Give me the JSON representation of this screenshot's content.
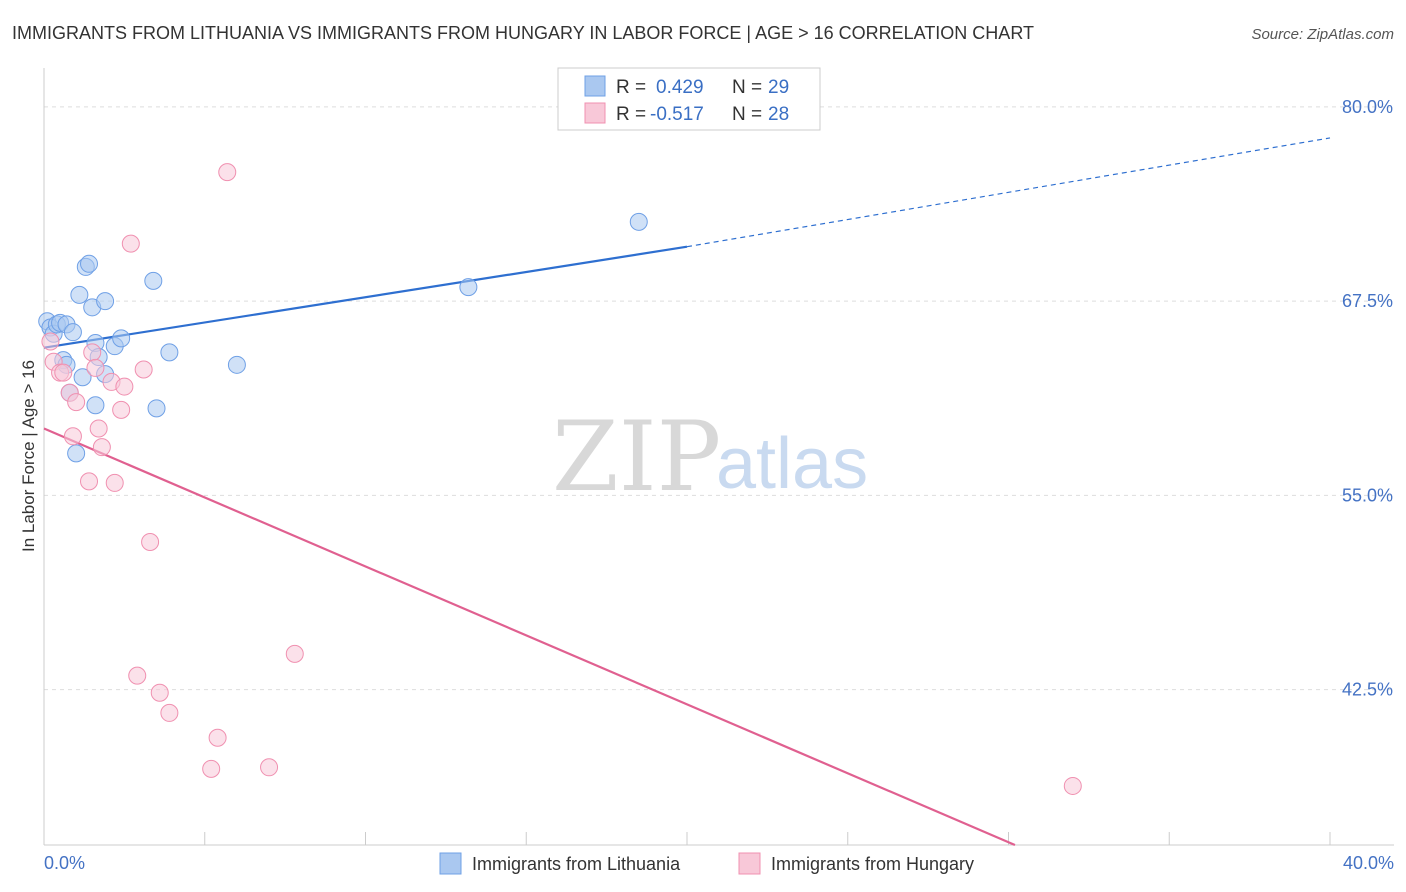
{
  "chart_data": {
    "type": "scatter",
    "title": "IMMIGRANTS FROM LITHUANIA VS IMMIGRANTS FROM HUNGARY IN LABOR FORCE | AGE > 16 CORRELATION CHART",
    "source": "Source: ZipAtlas.com",
    "xlabel": "",
    "ylabel": "In Labor Force | Age > 16",
    "xlim": [
      0,
      40
    ],
    "ylim": [
      32.5,
      82.5
    ],
    "x_tick_labels": [
      "0.0%",
      "40.0%"
    ],
    "y_ticks": [
      42.5,
      55.0,
      67.5,
      80.0
    ],
    "y_tick_labels": [
      "42.5%",
      "55.0%",
      "67.5%",
      "80.0%"
    ],
    "grid": true,
    "legend": {
      "r_label": "R =",
      "n_label": "N =",
      "entries": [
        {
          "r": "0.429",
          "n": "29"
        },
        {
          "r": "-0.517",
          "n": "28"
        }
      ]
    },
    "series": [
      {
        "name": "Immigrants from Lithuania",
        "color": "#6fa0e6",
        "fill": "#aac8f0",
        "line_color": "#2e6fd0",
        "trend": {
          "x0": 0,
          "y0": 64.5,
          "x1": 20,
          "y1": 71.0,
          "dash_to_x": 40,
          "dash_to_y": 78.0
        },
        "points": [
          [
            0.1,
            66.2
          ],
          [
            0.2,
            65.8
          ],
          [
            0.3,
            65.4
          ],
          [
            0.4,
            66.0
          ],
          [
            0.5,
            66.1
          ],
          [
            0.6,
            63.7
          ],
          [
            0.7,
            66.0
          ],
          [
            0.7,
            63.4
          ],
          [
            0.8,
            61.6
          ],
          [
            0.9,
            65.5
          ],
          [
            1.0,
            57.7
          ],
          [
            1.1,
            67.9
          ],
          [
            1.2,
            62.6
          ],
          [
            1.3,
            69.7
          ],
          [
            1.4,
            69.9
          ],
          [
            1.5,
            67.1
          ],
          [
            1.6,
            64.8
          ],
          [
            1.6,
            60.8
          ],
          [
            1.7,
            63.9
          ],
          [
            1.9,
            67.5
          ],
          [
            1.9,
            62.8
          ],
          [
            2.2,
            64.6
          ],
          [
            2.4,
            65.1
          ],
          [
            3.4,
            68.8
          ],
          [
            3.5,
            60.6
          ],
          [
            3.9,
            64.2
          ],
          [
            6.0,
            63.4
          ],
          [
            13.2,
            68.4
          ],
          [
            18.5,
            72.6
          ]
        ]
      },
      {
        "name": "Immigrants from Hungary",
        "color": "#f090b0",
        "fill": "#f8c8d8",
        "line_color": "#e06090",
        "trend": {
          "x0": 0,
          "y0": 59.3,
          "x1": 30.2,
          "y1": 32.5
        },
        "points": [
          [
            0.2,
            64.9
          ],
          [
            0.3,
            63.6
          ],
          [
            0.5,
            62.9
          ],
          [
            0.6,
            62.9
          ],
          [
            0.8,
            61.6
          ],
          [
            0.9,
            58.8
          ],
          [
            1.0,
            61.0
          ],
          [
            1.4,
            55.9
          ],
          [
            1.5,
            64.2
          ],
          [
            1.6,
            63.2
          ],
          [
            1.7,
            59.3
          ],
          [
            1.8,
            58.1
          ],
          [
            2.1,
            62.3
          ],
          [
            2.2,
            55.8
          ],
          [
            2.4,
            60.5
          ],
          [
            2.5,
            62.0
          ],
          [
            2.7,
            71.2
          ],
          [
            3.1,
            63.1
          ],
          [
            3.3,
            52.0
          ],
          [
            2.9,
            43.4
          ],
          [
            3.6,
            42.3
          ],
          [
            3.9,
            41.0
          ],
          [
            5.2,
            37.4
          ],
          [
            5.4,
            39.4
          ],
          [
            5.7,
            75.8
          ],
          [
            7.0,
            37.5
          ],
          [
            7.8,
            44.8
          ],
          [
            32.0,
            36.3
          ]
        ]
      }
    ],
    "watermark": {
      "part1": "ZIP",
      "part2": "atlas"
    }
  }
}
